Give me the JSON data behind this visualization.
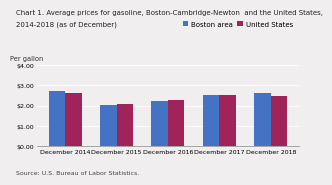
{
  "title_line1": "Chart 1. Average prices for gasoline, Boston-Cambridge-Newton  and the United States,",
  "title_line2": "2014-2018 (as of December)",
  "ylabel": "Per gallon",
  "source": "Source: U.S. Bureau of Labor Statistics.",
  "categories": [
    "December 2014",
    "December 2015",
    "December 2016",
    "December 2017",
    "December 2018"
  ],
  "boston_values": [
    2.74,
    2.04,
    2.25,
    2.52,
    2.62
  ],
  "us_values": [
    2.61,
    2.06,
    2.3,
    2.52,
    2.49
  ],
  "boston_color": "#4472C4",
  "us_color": "#A0235A",
  "ylim": [
    0,
    4.0
  ],
  "yticks": [
    0.0,
    1.0,
    2.0,
    3.0,
    4.0
  ],
  "ytick_labels": [
    "$0.00",
    "$1.00",
    "$2.00",
    "$3.00",
    "$4.00"
  ],
  "legend_labels": [
    "Boston area",
    "United States"
  ],
  "title_fontsize": 5.0,
  "axis_fontsize": 4.8,
  "tick_fontsize": 4.5,
  "legend_fontsize": 5.0,
  "source_fontsize": 4.5,
  "bar_width": 0.32,
  "bg_color": "#f0eeee"
}
